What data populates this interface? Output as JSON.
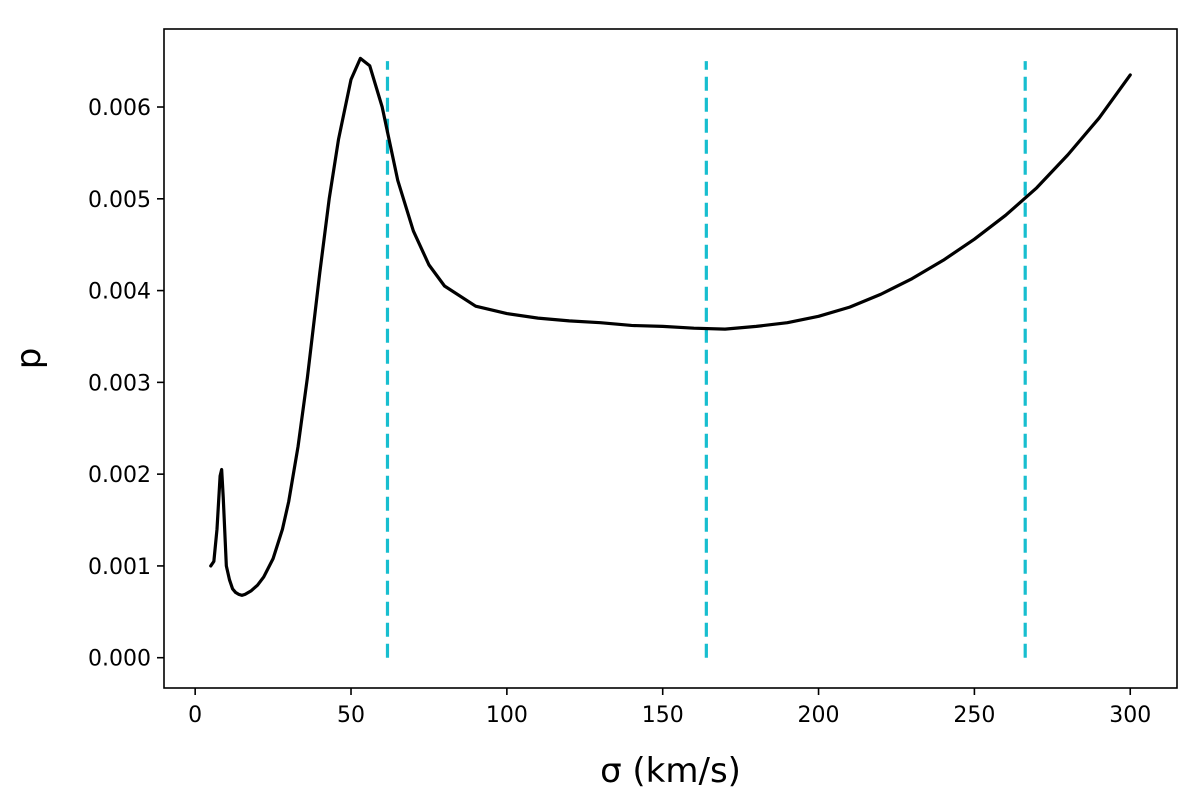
{
  "chart_data": {
    "type": "line",
    "xlabel": "σ (km/s)",
    "ylabel": "p",
    "xlim": [
      -10,
      315
    ],
    "ylim": [
      -0.00033,
      0.00685
    ],
    "x_ticks": [
      0,
      50,
      100,
      150,
      200,
      250,
      300
    ],
    "x_tick_labels": [
      "0",
      "50",
      "100",
      "150",
      "200",
      "250",
      "300"
    ],
    "y_ticks": [
      0.0,
      0.001,
      0.002,
      0.003,
      0.004,
      0.005,
      0.006
    ],
    "y_tick_labels": [
      "0.000",
      "0.001",
      "0.002",
      "0.003",
      "0.004",
      "0.005",
      "0.006"
    ],
    "grid": false,
    "series": [
      {
        "color": "#000000",
        "style": "solid",
        "x": [
          5,
          6,
          7,
          8,
          8.5,
          9,
          10,
          11,
          12,
          13,
          14,
          15,
          16,
          18,
          20,
          22,
          25,
          28,
          30,
          33,
          36,
          40,
          43,
          46,
          50,
          53,
          56,
          60,
          65,
          70,
          75,
          80,
          90,
          100,
          110,
          120,
          130,
          140,
          150,
          160,
          170,
          180,
          190,
          200,
          210,
          220,
          230,
          240,
          250,
          260,
          270,
          280,
          290,
          300
        ],
        "y": [
          0.001,
          0.00105,
          0.0014,
          0.00198,
          0.00205,
          0.00175,
          0.001,
          0.00085,
          0.00075,
          0.00071,
          0.00069,
          0.00068,
          0.00069,
          0.00073,
          0.00079,
          0.00088,
          0.00108,
          0.0014,
          0.0017,
          0.0023,
          0.00305,
          0.0042,
          0.005,
          0.00565,
          0.0063,
          0.00653,
          0.00645,
          0.006,
          0.0052,
          0.00465,
          0.00428,
          0.00405,
          0.00383,
          0.00375,
          0.0037,
          0.00367,
          0.00365,
          0.00362,
          0.00361,
          0.00359,
          0.00358,
          0.00361,
          0.00365,
          0.00372,
          0.00382,
          0.00396,
          0.00413,
          0.00433,
          0.00456,
          0.00482,
          0.00512,
          0.00548,
          0.00588,
          0.00635
        ]
      }
    ],
    "vlines": [
      {
        "x": 61.7,
        "y_range": [
          0.0,
          0.0065
        ],
        "color": "#17becf",
        "style": "dashed"
      },
      {
        "x": 164.0,
        "y_range": [
          0.0,
          0.0065
        ],
        "color": "#17becf",
        "style": "dashed"
      },
      {
        "x": 266.3,
        "y_range": [
          0.0,
          0.0065
        ],
        "color": "#17becf",
        "style": "dashed"
      }
    ]
  }
}
